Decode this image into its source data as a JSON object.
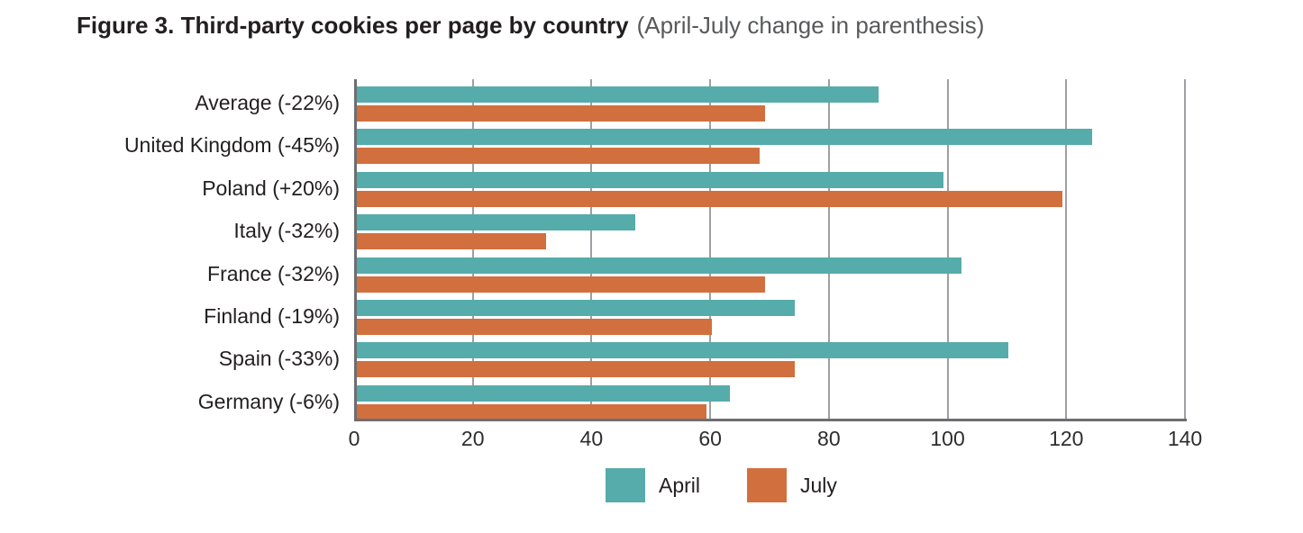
{
  "title": {
    "bold": "Figure 3. Third-party cookies per page by country",
    "note": "(April-July change in parenthesis)"
  },
  "chart_data": {
    "type": "bar",
    "orientation": "horizontal",
    "title": "Figure 3. Third-party cookies per page by country (April-July change in parenthesis)",
    "categories": [
      "Average (-22%)",
      "United Kingdom (-45%)",
      "Poland (+20%)",
      "Italy (-32%)",
      "France (-32%)",
      "Finland (-19%)",
      "Spain (-33%)",
      "Germany (-6%)"
    ],
    "series": [
      {
        "name": "April",
        "color": "#55acab",
        "values": [
          88,
          124,
          99,
          47,
          102,
          74,
          110,
          63
        ]
      },
      {
        "name": "July",
        "color": "#d1703e",
        "values": [
          69,
          68,
          119,
          32,
          69,
          60,
          74,
          59
        ]
      }
    ],
    "xlabel": "",
    "ylabel": "",
    "xlim": [
      0,
      140
    ],
    "xticks": [
      0,
      20,
      40,
      60,
      80,
      100,
      120,
      140
    ],
    "grid": true,
    "gridline_color": "#9d9fa2",
    "axis_color": "#6d6e71",
    "legend_position": "bottom"
  },
  "legend": {
    "items": [
      {
        "label": "April",
        "color": "#55acab"
      },
      {
        "label": "July",
        "color": "#d1703e"
      }
    ]
  }
}
